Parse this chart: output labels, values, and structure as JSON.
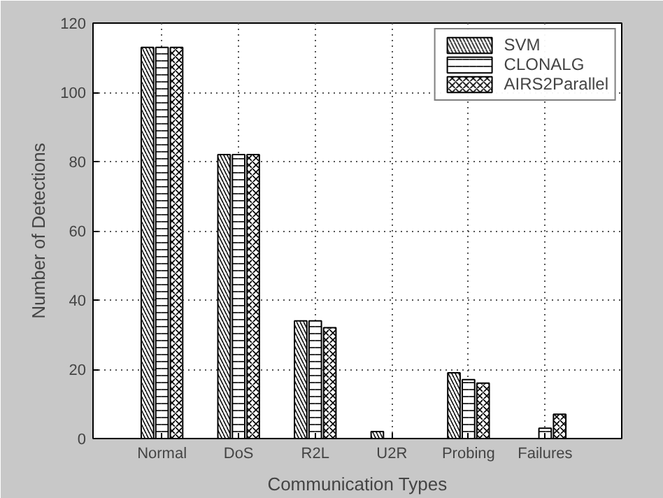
{
  "chart_data": {
    "type": "bar",
    "xlabel": "Communication Types",
    "ylabel": "Number of Detections",
    "categories": [
      "Normal",
      "DoS",
      "R2L",
      "U2R",
      "Probing",
      "Failures"
    ],
    "series": [
      {
        "name": "SVM",
        "color": "#ffffff",
        "values": [
          113,
          82,
          34,
          2,
          19,
          0
        ]
      },
      {
        "name": "CLONALG",
        "color": "#ffffff",
        "values": [
          113,
          82,
          34,
          0,
          17,
          3
        ]
      },
      {
        "name": "AIRS2Parallel",
        "color": "#ffffff",
        "values": [
          113,
          82,
          32,
          0,
          16,
          7
        ]
      }
    ],
    "ylim": [
      0,
      120
    ],
    "yticks": [
      0,
      20,
      40,
      60,
      80,
      100,
      120
    ],
    "grid": true,
    "legend": "top right"
  }
}
